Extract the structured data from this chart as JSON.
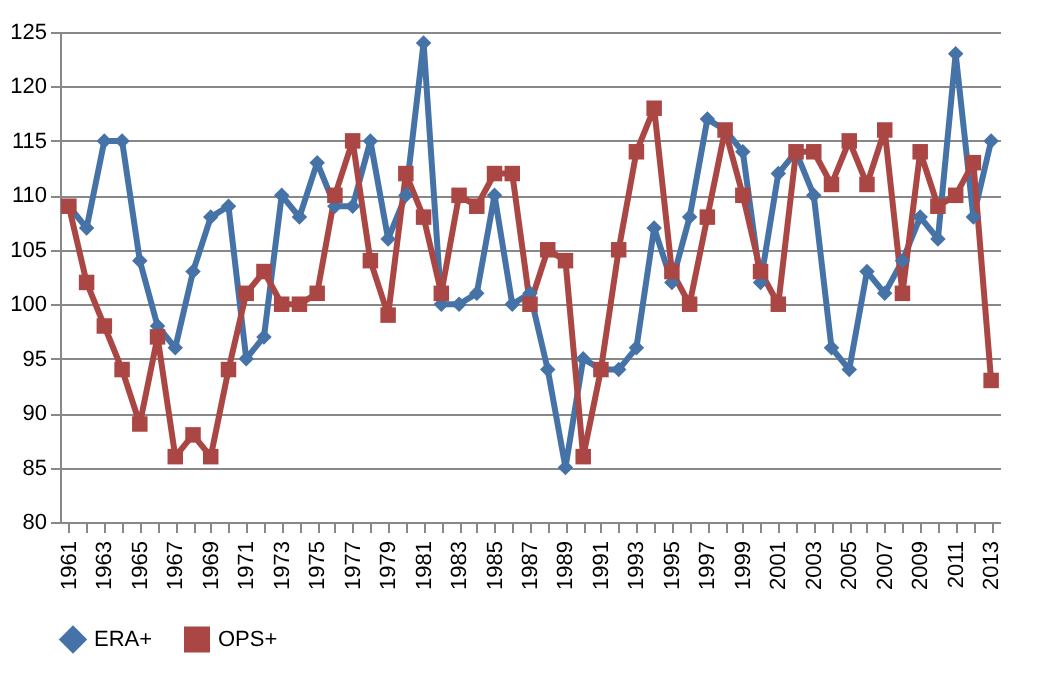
{
  "chart_data": {
    "type": "line",
    "categories": [
      "1961",
      null,
      "1963",
      null,
      "1965",
      null,
      "1967",
      null,
      "1969",
      null,
      "1971",
      null,
      "1973",
      null,
      "1975",
      null,
      "1977",
      null,
      "1979",
      null,
      "1981",
      null,
      "1983",
      null,
      "1985",
      null,
      "1987",
      null,
      "1989",
      null,
      "1991",
      null,
      "1993",
      null,
      "1995",
      null,
      "1997",
      null,
      "1999",
      null,
      "2001",
      null,
      "2003",
      null,
      "2005",
      null,
      "2007",
      null,
      "2009",
      null,
      "2011",
      null,
      "2013"
    ],
    "series": [
      {
        "name": "ERA+",
        "color": "#4572a7",
        "marker": "diamond",
        "values": [
          109,
          107,
          115,
          115,
          104,
          98,
          96,
          103,
          108,
          109,
          95,
          97,
          110,
          108,
          113,
          109,
          109,
          115,
          106,
          110,
          124,
          100,
          100,
          101,
          110,
          100,
          101,
          94,
          85,
          95,
          94,
          94,
          96,
          107,
          102,
          108,
          117,
          116,
          114,
          102,
          112,
          114,
          110,
          96,
          94,
          103,
          101,
          104,
          108,
          106,
          123,
          108,
          115
        ]
      },
      {
        "name": "OPS+",
        "color": "#aa4643",
        "marker": "square",
        "values": [
          109,
          102,
          98,
          94,
          89,
          97,
          86,
          88,
          86,
          94,
          101,
          103,
          100,
          100,
          101,
          110,
          115,
          104,
          99,
          112,
          108,
          101,
          110,
          109,
          112,
          112,
          100,
          105,
          104,
          86,
          94,
          105,
          114,
          118,
          103,
          100,
          108,
          116,
          110,
          103,
          100,
          114,
          114,
          111,
          115,
          111,
          116,
          101,
          114,
          109,
          110,
          113,
          93
        ]
      }
    ],
    "ylim": [
      80,
      125
    ],
    "yticks": [
      80,
      85,
      90,
      95,
      100,
      105,
      110,
      115,
      120,
      125
    ],
    "grid": "y",
    "legend": "bottom",
    "line_style": "solid"
  }
}
